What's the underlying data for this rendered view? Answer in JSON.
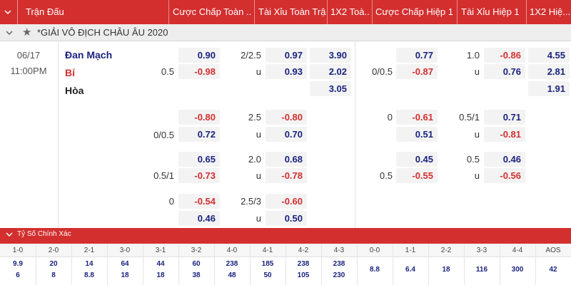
{
  "header": {
    "match_label": "Trận Đấu",
    "handicap_ft": "Cược Chấp Toàn ...",
    "ou_ft": "Tài Xỉu Toàn Trận",
    "x12_ft": "1X2 Toà...",
    "handicap_h1": "Cược Chấp Hiệp 1",
    "ou_h1": "Tài Xỉu Hiệp 1",
    "x12_h1": "1X2 Hiệ..."
  },
  "league": {
    "name": "*GIẢI VÔ ĐỊCH CHÂU ÂU 2020"
  },
  "match": {
    "date": "06/17",
    "time": "11:00PM",
    "home": "Đan Mạch",
    "away": "Bỉ",
    "draw": "Hòa",
    "colors": {
      "home": "#1a237e",
      "away": "#d32f2f",
      "draw": "#222222"
    }
  },
  "odds": {
    "r1": {
      "ft_hcap_line": "0.5",
      "ft_hcap_home": "0.90",
      "ft_hcap_away": "-0.98",
      "ft_ou_line": "2/2.5",
      "ft_ou_u": "u",
      "ft_ou_over": "0.97",
      "ft_ou_under": "0.93",
      "ft_1": "3.90",
      "ft_2": "2.02",
      "ft_x": "3.05",
      "h1_hcap_line": "0/0.5",
      "h1_hcap_home": "0.77",
      "h1_hcap_away": "-0.87",
      "h1_ou_line": "1.0",
      "h1_ou_u": "u",
      "h1_ou_over": "-0.86",
      "h1_ou_under": "0.76",
      "h1_1": "4.55",
      "h1_2": "2.81",
      "h1_x": "1.91"
    },
    "r2": {
      "ft_hcap_line": "0/0.5",
      "ft_hcap_home": "-0.80",
      "ft_hcap_away": "0.72",
      "ft_ou_line": "2.5",
      "ft_ou_u": "u",
      "ft_ou_over": "-0.80",
      "ft_ou_under": "0.70",
      "h1_hcap_line": "0",
      "h1_hcap_home": "-0.61",
      "h1_hcap_away": "0.51",
      "h1_ou_line": "0.5/1",
      "h1_ou_u": "u",
      "h1_ou_over": "0.71",
      "h1_ou_under": "-0.81"
    },
    "r3": {
      "ft_hcap_line": "0.5/1",
      "ft_hcap_home": "0.65",
      "ft_hcap_away": "-0.73",
      "ft_ou_line": "2.0",
      "ft_ou_u": "u",
      "ft_ou_over": "0.68",
      "ft_ou_under": "-0.78",
      "h1_hcap_line": "0.5",
      "h1_hcap_home": "0.45",
      "h1_hcap_away": "-0.55",
      "h1_ou_line": "0.5",
      "h1_ou_u": "u",
      "h1_ou_over": "0.46",
      "h1_ou_under": "-0.56"
    },
    "r4": {
      "ft_hcap_line": "0",
      "ft_hcap_home": "-0.54",
      "ft_hcap_away": "0.46",
      "ft_ou_line": "2.5/3",
      "ft_ou_u": "u",
      "ft_ou_over": "-0.60",
      "ft_ou_under": "0.50"
    }
  },
  "correct_score": {
    "title": "Tỷ Số Chính Xác",
    "labels": [
      "1-0",
      "2-0",
      "2-1",
      "3-0",
      "3-1",
      "3-2",
      "4-0",
      "4-1",
      "4-2",
      "4-3",
      "0-0",
      "1-1",
      "2-2",
      "3-3",
      "4-4",
      "AOS"
    ],
    "top": [
      "9.9",
      "20",
      "14",
      "64",
      "44",
      "60",
      "238",
      "185",
      "238",
      "238",
      "8.8",
      "6.4",
      "18",
      "116",
      "300",
      "42"
    ],
    "bottom": [
      "6",
      "8",
      "8.8",
      "18",
      "18",
      "38",
      "48",
      "50",
      "105",
      "230",
      "",
      "",
      "",
      "",
      "",
      ""
    ]
  },
  "colors": {
    "accent": "#d32f2f",
    "positive": "#1a237e",
    "negative": "#d32f2f"
  }
}
